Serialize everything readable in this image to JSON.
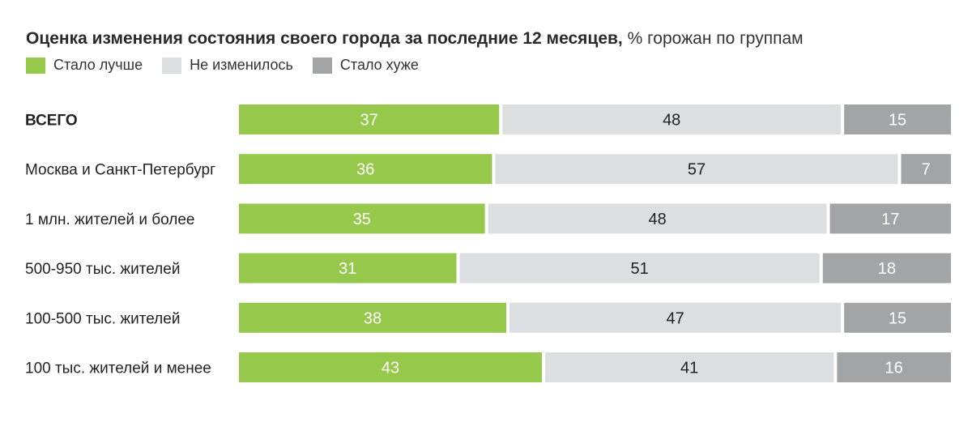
{
  "title_bold": "Оценка изменения состояния своего города за последние  12 месяцев,",
  "title_rest": " % горожан по группам",
  "legend": [
    {
      "label": "Стало лучше",
      "color": "#96c84b"
    },
    {
      "label": "Не изменилось",
      "color": "#dcdfe1"
    },
    {
      "label": "Стало хуже",
      "color": "#a3a4a6"
    }
  ],
  "chart_data": {
    "type": "bar",
    "orientation": "horizontal",
    "stacked": true,
    "title": "Оценка изменения состояния своего города за последние  12 месяцев, % горожан по группам",
    "categories": [
      "ВСЕГО",
      "Москва и Санкт-Петербург",
      "1 млн. жителей и более",
      "500-950 тыс. жителей",
      "100-500 тыс. жителей",
      "100 тыс. жителей и менее"
    ],
    "series": [
      {
        "name": "Стало лучше",
        "color": "#96c84b",
        "label_color": "#ffffff",
        "values": [
          37,
          36,
          35,
          31,
          38,
          43
        ]
      },
      {
        "name": "Не изменилось",
        "color": "#dcdfe1",
        "label_color": "#222222",
        "values": [
          48,
          57,
          48,
          51,
          47,
          41
        ]
      },
      {
        "name": "Стало хуже",
        "color": "#a3a4a6",
        "label_color": "#ffffff",
        "values": [
          15,
          7,
          17,
          18,
          15,
          16
        ]
      }
    ],
    "xlim": [
      0,
      100
    ],
    "grid": false,
    "legend_position": "top-left"
  }
}
